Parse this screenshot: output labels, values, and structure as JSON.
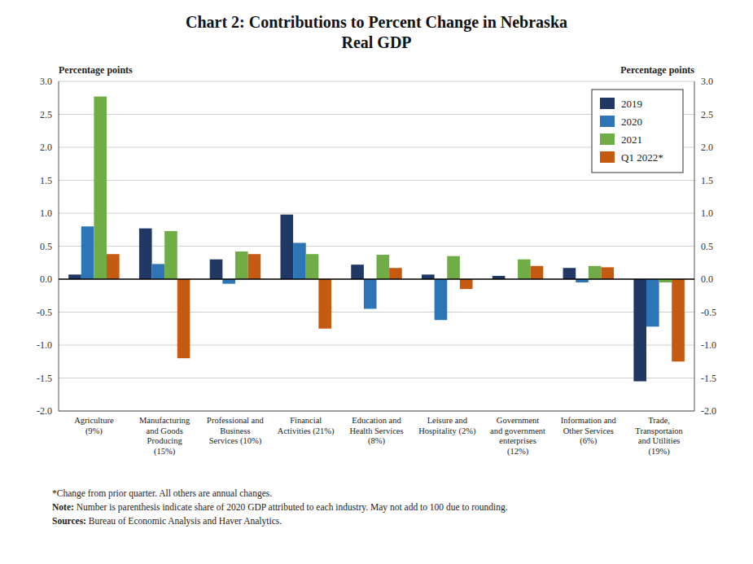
{
  "chart_data": {
    "type": "bar",
    "title": "Chart 2: Contributions to Percent Change in Nebraska\nReal GDP",
    "y_label": "Percentage points",
    "y2_label": "Percentage points",
    "categories": [
      "Agriculture\n(9%)",
      "Manufacturing\nand Goods\nProducing\n(15%)",
      "Professional and\nBusiness\nServices (10%)",
      "Financial\nActivities (21%)",
      "Education and\nHealth Services\n(8%)",
      "Leisure and\nHospitality (2%)",
      "Government\nand government\nenterprises\n(12%)",
      "Information and\nOther Services\n(6%)",
      "Trade,\nTransportaion\nand Utilities\n(19%)"
    ],
    "series": [
      {
        "name": "2019",
        "color": "#1f3864",
        "values": [
          0.07,
          0.77,
          0.3,
          0.98,
          0.22,
          0.07,
          0.05,
          0.17,
          -1.55
        ]
      },
      {
        "name": "2020",
        "color": "#2e75b6",
        "values": [
          0.8,
          0.23,
          -0.07,
          0.55,
          -0.45,
          -0.62,
          0.0,
          -0.05,
          -0.72
        ]
      },
      {
        "name": "2021",
        "color": "#70ad47",
        "values": [
          2.77,
          0.73,
          0.42,
          0.38,
          0.37,
          0.35,
          0.3,
          0.2,
          -0.05
        ]
      },
      {
        "name": "Q1 2022*",
        "color": "#c55a11",
        "values": [
          0.38,
          -1.2,
          0.38,
          -0.75,
          0.17,
          -0.15,
          0.2,
          0.18,
          -1.25
        ]
      }
    ],
    "ylim": [
      -2.0,
      3.0
    ],
    "yticks": [
      {
        "value": -2.0,
        "label": "-2.0"
      },
      -1.5,
      {
        "value": -1.0,
        "label": "-1.0"
      },
      -0.5,
      {
        "value": 0.0,
        "label": "0.0"
      },
      0.5,
      {
        "value": 1.0,
        "label": "1.0"
      },
      1.5,
      {
        "value": 2.0,
        "label": "2.0"
      },
      2.5,
      {
        "value": 3.0,
        "label": "3.0"
      }
    ],
    "y2lim": [
      -2.0,
      3.0
    ],
    "y2ticks": [
      {
        "value": -2.0,
        "label": "-2.0"
      },
      -1.5,
      {
        "value": -1.0,
        "label": "-1.0"
      },
      -0.5,
      {
        "value": 0.0,
        "label": "0.0"
      },
      0.5,
      {
        "value": 1.0,
        "label": "1.0"
      },
      1.5,
      {
        "value": 2.0,
        "label": "2.0"
      },
      2.5,
      {
        "value": 3.0,
        "label": "3.0"
      }
    ],
    "grid": true,
    "legend": "upper right",
    "annotations": [
      "*Change from prior quarter. All others are annual changes.",
      "Note:",
      " Number is parenthesis indicate share of 2020 GDP attributed to each industry. May not add to 100 due to rounding.",
      "Sources:",
      " Bureau of Economic Analysis and Haver Analytics."
    ]
  }
}
